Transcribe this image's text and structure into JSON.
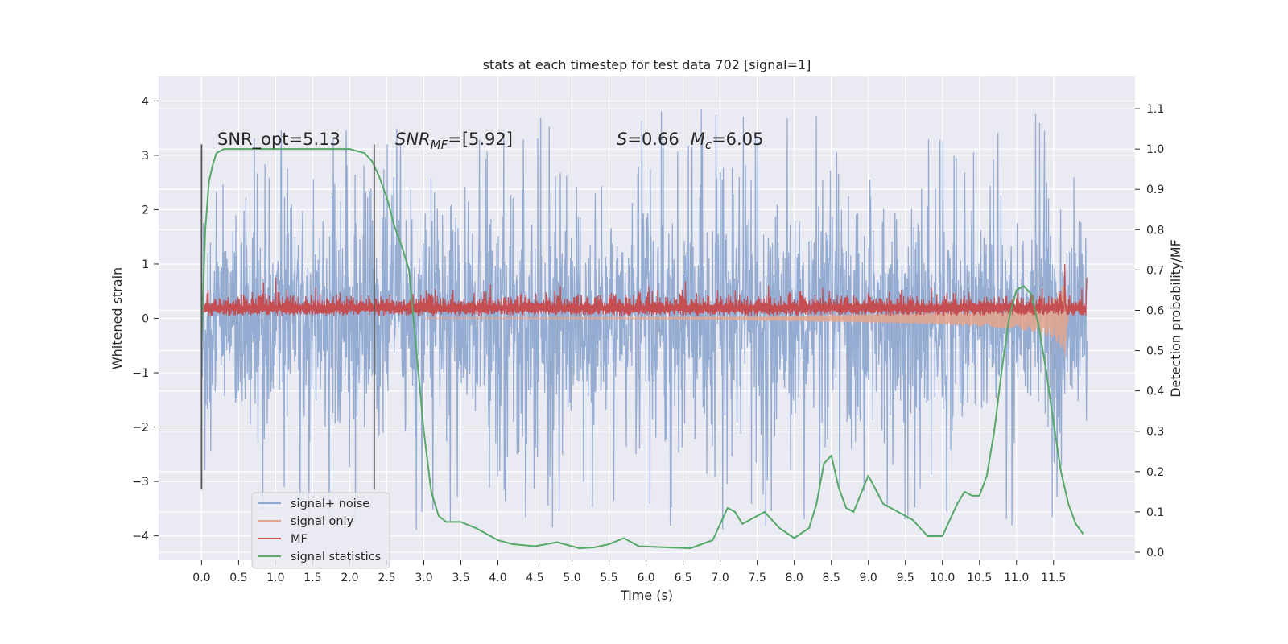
{
  "chart_data": {
    "type": "line",
    "title": "stats at each timestep for test data 702 [signal=1]",
    "xlabel": "Time (s)",
    "ylabel": "Whitened strain",
    "ylabel_right": "Detection probability/MF",
    "xlim": [
      -0.58,
      12.6
    ],
    "ylim": [
      -4.45,
      4.45
    ],
    "ylim_right": [
      -0.02,
      1.18
    ],
    "x_ticks": [
      0.0,
      0.5,
      1.0,
      1.5,
      2.0,
      2.5,
      3.0,
      3.5,
      4.0,
      4.5,
      5.0,
      5.5,
      6.0,
      6.5,
      7.0,
      7.5,
      8.0,
      8.5,
      9.0,
      9.5,
      10.0,
      10.5,
      11.0,
      11.5
    ],
    "x_tick_labels": [
      "0.0",
      "0.5",
      "1.0",
      "1.5",
      "2.0",
      "2.5",
      "3.0",
      "3.5",
      "4.0",
      "4.5",
      "5.0",
      "5.5",
      "6.0",
      "6.5",
      "7.0",
      "7.5",
      "8.0",
      "8.5",
      "9.0",
      "9.5",
      "10.0",
      "10.5",
      "11.0",
      "11.5"
    ],
    "y_ticks": [
      4,
      3,
      2,
      1,
      0,
      -1,
      -2,
      -3,
      -4
    ],
    "y_tick_labels": [
      "4",
      "3",
      "2",
      "1",
      "0",
      "−1",
      "−2",
      "−3",
      "−4"
    ],
    "y_right_ticks": [
      1.1,
      1.0,
      0.9,
      0.8,
      0.7,
      0.6,
      0.5,
      0.4,
      0.3,
      0.2,
      0.1,
      0.0
    ],
    "y_right_tick_labels": [
      "1.1",
      "1.0",
      "0.9",
      "0.8",
      "0.7",
      "0.6",
      "0.5",
      "0.4",
      "0.3",
      "0.2",
      "0.1",
      "0.0"
    ],
    "grid": true,
    "legend_position": "lower-left",
    "annotations": {
      "snr_opt": "SNR_opt=5.13",
      "snr_mf": "SNR_MF=[5.92]",
      "s_mc": "S=0.66   M_c=6.05"
    },
    "vlines_x": [
      0.0,
      2.33
    ],
    "vlines_y_range": [
      -3.15,
      3.2
    ],
    "series": [
      {
        "name": "signal+ noise",
        "axis": "left",
        "color": "#8fa8d0",
        "x_range": [
          0.0,
          11.95
        ],
        "envelope_upper_typical": 2.0,
        "envelope_lower_typical": -2.0,
        "peak_max": 4.1,
        "peak_min": -4.05
      },
      {
        "name": "signal only",
        "axis": "left",
        "color": "#e5a58c",
        "x": [
          7.0,
          8.0,
          9.0,
          10.0,
          10.5,
          11.0,
          11.3,
          11.5,
          11.6,
          11.66,
          11.7
        ],
        "y_amplitude": [
          0.02,
          0.05,
          0.08,
          0.12,
          0.15,
          0.2,
          0.27,
          0.38,
          0.55,
          0.7,
          0.0
        ]
      },
      {
        "name": "MF",
        "axis": "left",
        "color": "#c44e52",
        "x_range": [
          0.0,
          11.95
        ],
        "baseline": 0.05,
        "typical_top": 0.4,
        "spikes": [
          {
            "x": 1.0,
            "y": 0.75
          },
          {
            "x": 11.65,
            "y": 1.0
          },
          {
            "x": 11.95,
            "y": 0.75
          }
        ]
      },
      {
        "name": "signal statistics",
        "axis": "right",
        "color": "#55a868",
        "x": [
          0.0,
          0.05,
          0.1,
          0.15,
          0.2,
          0.3,
          0.5,
          1.0,
          1.5,
          2.0,
          2.1,
          2.2,
          2.3,
          2.4,
          2.5,
          2.6,
          2.7,
          2.8,
          2.9,
          3.0,
          3.1,
          3.2,
          3.3,
          3.5,
          3.7,
          4.0,
          4.2,
          4.5,
          4.8,
          5.1,
          5.3,
          5.5,
          5.7,
          5.9,
          6.3,
          6.6,
          6.9,
          7.0,
          7.1,
          7.2,
          7.3,
          7.4,
          7.6,
          7.8,
          8.0,
          8.2,
          8.3,
          8.4,
          8.5,
          8.6,
          8.7,
          8.8,
          9.0,
          9.2,
          9.4,
          9.6,
          9.8,
          10.0,
          10.2,
          10.3,
          10.4,
          10.5,
          10.6,
          10.7,
          10.8,
          10.9,
          11.0,
          11.1,
          11.2,
          11.3,
          11.4,
          11.5,
          11.6,
          11.7,
          11.8,
          11.9
        ],
        "y": [
          0.52,
          0.8,
          0.92,
          0.96,
          0.99,
          1.0,
          1.0,
          1.0,
          1.0,
          1.0,
          0.995,
          0.99,
          0.97,
          0.93,
          0.88,
          0.81,
          0.76,
          0.7,
          0.5,
          0.3,
          0.15,
          0.09,
          0.075,
          0.075,
          0.06,
          0.03,
          0.02,
          0.015,
          0.025,
          0.01,
          0.012,
          0.02,
          0.035,
          0.015,
          0.012,
          0.01,
          0.03,
          0.07,
          0.11,
          0.1,
          0.07,
          0.08,
          0.1,
          0.06,
          0.035,
          0.06,
          0.12,
          0.22,
          0.24,
          0.16,
          0.11,
          0.1,
          0.19,
          0.12,
          0.1,
          0.08,
          0.04,
          0.04,
          0.12,
          0.15,
          0.14,
          0.14,
          0.19,
          0.3,
          0.45,
          0.58,
          0.65,
          0.66,
          0.64,
          0.56,
          0.45,
          0.32,
          0.2,
          0.12,
          0.07,
          0.045
        ]
      }
    ]
  }
}
